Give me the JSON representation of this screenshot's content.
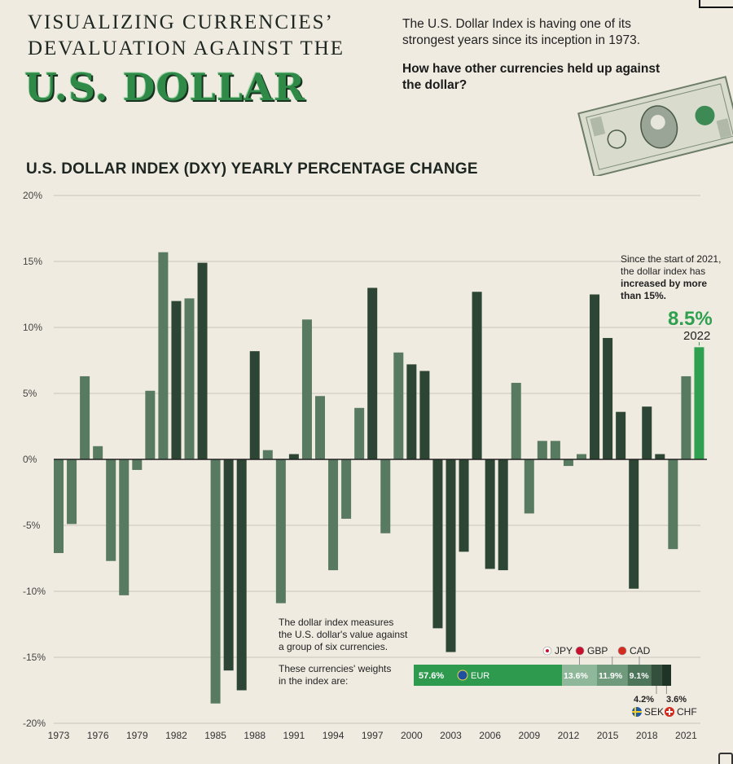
{
  "header": {
    "title_line1": "VISUALIZING CURRENCIES’",
    "title_line2": "DEVALUATION AGAINST THE",
    "title_big": "U.S. DOLLAR",
    "intro": "The U.S. Dollar Index is having one of its strongest years since its inception in 1973.",
    "question": "How have other currencies held up against the dollar?"
  },
  "colors": {
    "bar_primary": "#587a60",
    "bar_dark": "#2c4535",
    "highlight": "#2ea04f",
    "eur": "#2e9a4e"
  },
  "chart_data": {
    "type": "bar",
    "title": "U.S. DOLLAR INDEX (DXY) YEARLY PERCENTAGE CHANGE",
    "y_ticks": [
      "20%",
      "15%",
      "10%",
      "5%",
      "0%",
      "-5%",
      "-10%",
      "-15%",
      "-20%"
    ],
    "ylim": [
      -20,
      20
    ],
    "x_tick_labels": [
      "1973",
      "1976",
      "1979",
      "1982",
      "1985",
      "1988",
      "1991",
      "1994",
      "1997",
      "2000",
      "2003",
      "2006",
      "2009",
      "2012",
      "2015",
      "2018",
      "2021"
    ],
    "years": [
      1973,
      1974,
      1975,
      1976,
      1977,
      1978,
      1979,
      1980,
      1981,
      1982,
      1983,
      1984,
      1985,
      1986,
      1987,
      1988,
      1989,
      1990,
      1991,
      1992,
      1993,
      1994,
      1995,
      1996,
      1997,
      1998,
      1999,
      2000,
      2001,
      2002,
      2003,
      2004,
      2005,
      2006,
      2007,
      2008,
      2009,
      2010,
      2011,
      2012,
      2013,
      2014,
      2015,
      2016,
      2017,
      2018,
      2019,
      2020,
      2021,
      2022
    ],
    "values": [
      -7.1,
      -4.9,
      6.3,
      1.0,
      -7.7,
      -10.3,
      -0.8,
      5.2,
      15.7,
      12.0,
      12.2,
      14.9,
      -18.5,
      -16.0,
      -17.5,
      8.2,
      0.7,
      -10.9,
      0.4,
      10.6,
      4.8,
      -8.4,
      -4.5,
      3.9,
      13.0,
      -5.6,
      8.1,
      7.2,
      6.7,
      -12.8,
      -14.6,
      -7.0,
      12.7,
      -8.3,
      -8.4,
      5.8,
      -4.1,
      1.4,
      1.4,
      -0.5,
      0.4,
      12.5,
      9.2,
      3.6,
      -9.8,
      4.0,
      0.4,
      -6.8,
      6.3,
      8.5
    ],
    "highlight": {
      "value_label": "8.5%",
      "year_label": "2022",
      "note_line1": "Since the start of 2021,",
      "note_line2": "the dollar index has",
      "note_bold1": "increased by more",
      "note_bold2": "than 15%."
    },
    "basket": {
      "desc_line1": "The dollar index measures",
      "desc_line2": "the U.S. dollar's value against",
      "desc_line3": "a group of six currencies.",
      "weights_line1": "These currencies' weights",
      "weights_line2": "in the index are:",
      "segments": [
        {
          "code": "EUR",
          "weight": 57.6,
          "label": "57.6%",
          "color": "#2e9a4e"
        },
        {
          "code": "JPY",
          "weight": 13.6,
          "label": "13.6%",
          "color": "#8fb79a"
        },
        {
          "code": "GBP",
          "weight": 11.9,
          "label": "11.9%",
          "color": "#6f9a7c"
        },
        {
          "code": "CAD",
          "weight": 9.1,
          "label": "9.1%",
          "color": "#4d7559"
        },
        {
          "code": "SEK",
          "weight": 4.2,
          "label": "4.2%",
          "color": "#33503d"
        },
        {
          "code": "CHF",
          "weight": 3.6,
          "label": "3.6%",
          "color": "#1f3326"
        }
      ]
    }
  }
}
